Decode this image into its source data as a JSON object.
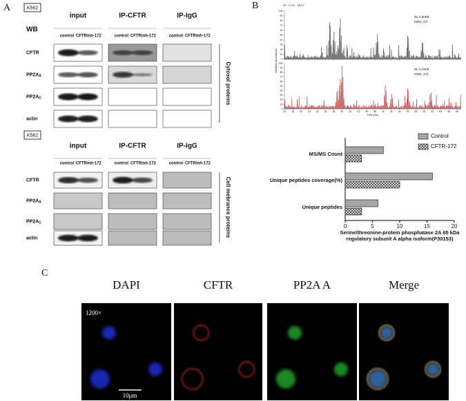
{
  "panel_a": {
    "label": "A",
    "blocks": [
      {
        "cell_line": "K562",
        "wb": "WB",
        "groups": [
          "input",
          "IP-CFTR",
          "IP-IgG"
        ],
        "lanes": [
          "control",
          "CFTRinh-172"
        ],
        "rows": [
          {
            "text": "CFTR"
          },
          {
            "text": "PP2A",
            "sub": "A"
          },
          {
            "text": "PP2A",
            "sub": "C"
          },
          {
            "text": "actin"
          }
        ],
        "side_label": "Cytosol proteins"
      },
      {
        "cell_line": "K562",
        "groups": [
          "input",
          "IP-CFTR",
          "IP-IgG"
        ],
        "lanes": [
          "control",
          "CFTRinh-172"
        ],
        "rows": [
          {
            "text": "CFTR"
          },
          {
            "text": "PP2A",
            "sub": "A"
          },
          {
            "text": "PP2A",
            "sub": "C"
          },
          {
            "text": "actin"
          }
        ],
        "side_label": "Cell mebrance proteins"
      }
    ]
  },
  "panel_b": {
    "label": "B",
    "chromatogram": {
      "range": "RT: 17.01 - 59.07",
      "y_label": "Relative Abundance",
      "x_label": "Time (min)",
      "ylim": [
        0,
        100
      ],
      "yticks": [
        0,
        10,
        20,
        30,
        40,
        50,
        60,
        70,
        80,
        90,
        100
      ],
      "xlim": [
        16,
        59
      ],
      "xticks": [
        16,
        18,
        20,
        22,
        24,
        26,
        28,
        30,
        32,
        34,
        36,
        38,
        40,
        42,
        44,
        46,
        48,
        50,
        52,
        54,
        56,
        58
      ],
      "traces": [
        {
          "nl": "NL:1.90E8",
          "name": "K562_ctrl",
          "color": "#333333"
        },
        {
          "nl": "NL:1.21E8",
          "name": "K562_172",
          "color": "#b02424"
        }
      ]
    }
  },
  "chart_data": {
    "type": "barh",
    "categories": [
      "MS/MS Count",
      "Unique peptides coverage(%)",
      "Unique peptides"
    ],
    "series": [
      {
        "name": "Control",
        "color": "#a6a6a6",
        "values": [
          7,
          16,
          6
        ]
      },
      {
        "name": "CFTR-172",
        "color": "#ffffff",
        "pattern": "crosshatch",
        "values": [
          3,
          10,
          3
        ]
      }
    ],
    "xlim": [
      0,
      20
    ],
    "xticks": [
      0,
      5,
      10,
      15,
      20
    ],
    "xlabel": "Serine/threonine-protein phosphatase 2A 65 kDa regulatory subunit A alpha isoform(P30153)",
    "legend": "top-right"
  },
  "panel_c": {
    "label": "C",
    "channels": [
      "DAPI",
      "CFTR",
      "PP2A A",
      "Merge"
    ],
    "magnification": "1200×",
    "scale_bar": "10μm"
  }
}
